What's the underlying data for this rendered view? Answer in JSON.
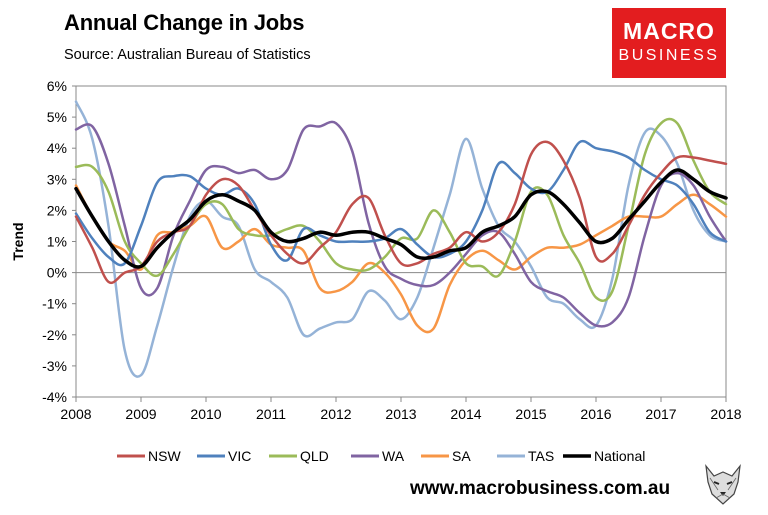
{
  "header": {
    "title": "Annual Change in Jobs",
    "subtitle": "Source: Australian Bureau of Statistics"
  },
  "logo": {
    "line1": "MACRO",
    "line2": "BUSINESS",
    "color": "#e31d1f"
  },
  "footer": {
    "url": "www.macrobusiness.com.au"
  },
  "chart_data": {
    "type": "line",
    "title": "Annual Change in Jobs",
    "xlabel": "",
    "ylabel": "Trend",
    "xlim": [
      2008,
      2018
    ],
    "ylim": [
      -4,
      6
    ],
    "xticks": [
      "2008",
      "2009",
      "2010",
      "2011",
      "2012",
      "2013",
      "2014",
      "2015",
      "2016",
      "2017",
      "2018"
    ],
    "yticks": [
      "-4%",
      "-3%",
      "-2%",
      "-1%",
      "0%",
      "1%",
      "2%",
      "3%",
      "4%",
      "5%",
      "6%"
    ],
    "grid": false,
    "legend_position": "bottom",
    "series": [
      {
        "name": "NSW",
        "color": "#c0504d",
        "width": 2.5,
        "points": [
          [
            2008,
            1.8
          ],
          [
            2008.25,
            0.8
          ],
          [
            2008.5,
            -0.3
          ],
          [
            2008.75,
            0.0
          ],
          [
            2009,
            0.2
          ],
          [
            2009.25,
            1.0
          ],
          [
            2009.5,
            1.3
          ],
          [
            2009.75,
            1.5
          ],
          [
            2010,
            2.5
          ],
          [
            2010.25,
            3.0
          ],
          [
            2010.5,
            2.8
          ],
          [
            2010.75,
            2.0
          ],
          [
            2011,
            1.2
          ],
          [
            2011.25,
            0.6
          ],
          [
            2011.5,
            0.3
          ],
          [
            2011.75,
            0.8
          ],
          [
            2012,
            1.3
          ],
          [
            2012.25,
            2.2
          ],
          [
            2012.5,
            2.4
          ],
          [
            2012.75,
            1.2
          ],
          [
            2013,
            0.3
          ],
          [
            2013.25,
            0.3
          ],
          [
            2013.5,
            0.6
          ],
          [
            2013.75,
            0.8
          ],
          [
            2014,
            1.3
          ],
          [
            2014.25,
            1.0
          ],
          [
            2014.5,
            1.3
          ],
          [
            2014.75,
            2.2
          ],
          [
            2015,
            3.8
          ],
          [
            2015.25,
            4.2
          ],
          [
            2015.5,
            3.6
          ],
          [
            2015.75,
            2.4
          ],
          [
            2016,
            0.5
          ],
          [
            2016.25,
            0.6
          ],
          [
            2016.5,
            1.5
          ],
          [
            2016.75,
            2.5
          ],
          [
            2017,
            3.2
          ],
          [
            2017.25,
            3.7
          ],
          [
            2017.5,
            3.7
          ],
          [
            2017.75,
            3.6
          ],
          [
            2018,
            3.5
          ]
        ]
      },
      {
        "name": "VIC",
        "color": "#4f81bd",
        "width": 2.5,
        "points": [
          [
            2008,
            1.9
          ],
          [
            2008.25,
            1.1
          ],
          [
            2008.5,
            0.5
          ],
          [
            2008.75,
            0.3
          ],
          [
            2009,
            1.5
          ],
          [
            2009.25,
            2.9
          ],
          [
            2009.5,
            3.1
          ],
          [
            2009.75,
            3.1
          ],
          [
            2010,
            2.7
          ],
          [
            2010.25,
            2.5
          ],
          [
            2010.5,
            2.7
          ],
          [
            2010.75,
            2.2
          ],
          [
            2011,
            0.9
          ],
          [
            2011.25,
            0.4
          ],
          [
            2011.5,
            1.4
          ],
          [
            2011.75,
            1.2
          ],
          [
            2012,
            1.0
          ],
          [
            2012.25,
            1.0
          ],
          [
            2012.5,
            1.0
          ],
          [
            2012.75,
            1.1
          ],
          [
            2013,
            1.4
          ],
          [
            2013.25,
            0.9
          ],
          [
            2013.5,
            0.5
          ],
          [
            2013.75,
            0.6
          ],
          [
            2014,
            1.0
          ],
          [
            2014.25,
            2.0
          ],
          [
            2014.5,
            3.5
          ],
          [
            2014.75,
            3.2
          ],
          [
            2015,
            2.7
          ],
          [
            2015.25,
            2.6
          ],
          [
            2015.5,
            3.3
          ],
          [
            2015.75,
            4.2
          ],
          [
            2016,
            4.0
          ],
          [
            2016.25,
            3.9
          ],
          [
            2016.5,
            3.7
          ],
          [
            2016.75,
            3.3
          ],
          [
            2017,
            3.0
          ],
          [
            2017.25,
            2.8
          ],
          [
            2017.5,
            2.2
          ],
          [
            2017.75,
            1.3
          ],
          [
            2018,
            1.0
          ]
        ]
      },
      {
        "name": "QLD",
        "color": "#9bbb59",
        "width": 2.5,
        "points": [
          [
            2008,
            3.4
          ],
          [
            2008.25,
            3.4
          ],
          [
            2008.5,
            2.6
          ],
          [
            2008.75,
            1.0
          ],
          [
            2009,
            0.3
          ],
          [
            2009.25,
            -0.1
          ],
          [
            2009.5,
            0.6
          ],
          [
            2009.75,
            1.5
          ],
          [
            2010,
            2.2
          ],
          [
            2010.25,
            2.2
          ],
          [
            2010.5,
            1.4
          ],
          [
            2010.75,
            1.2
          ],
          [
            2011,
            1.2
          ],
          [
            2011.25,
            1.4
          ],
          [
            2011.5,
            1.5
          ],
          [
            2011.75,
            1.0
          ],
          [
            2012,
            0.3
          ],
          [
            2012.25,
            0.1
          ],
          [
            2012.5,
            0.1
          ],
          [
            2012.75,
            0.5
          ],
          [
            2013,
            1.1
          ],
          [
            2013.25,
            1.1
          ],
          [
            2013.5,
            2.0
          ],
          [
            2013.75,
            1.3
          ],
          [
            2014,
            0.3
          ],
          [
            2014.25,
            0.2
          ],
          [
            2014.5,
            -0.1
          ],
          [
            2014.75,
            1.0
          ],
          [
            2015,
            2.6
          ],
          [
            2015.25,
            2.5
          ],
          [
            2015.5,
            1.2
          ],
          [
            2015.75,
            0.3
          ],
          [
            2016,
            -0.8
          ],
          [
            2016.25,
            -0.6
          ],
          [
            2016.5,
            1.5
          ],
          [
            2016.75,
            3.8
          ],
          [
            2017,
            4.8
          ],
          [
            2017.25,
            4.8
          ],
          [
            2017.5,
            3.6
          ],
          [
            2017.75,
            2.6
          ],
          [
            2018,
            2.2
          ]
        ]
      },
      {
        "name": "WA",
        "color": "#8064a2",
        "width": 2.5,
        "points": [
          [
            2008,
            4.6
          ],
          [
            2008.25,
            4.7
          ],
          [
            2008.5,
            3.5
          ],
          [
            2008.75,
            1.5
          ],
          [
            2009,
            -0.5
          ],
          [
            2009.25,
            -0.5
          ],
          [
            2009.5,
            1.2
          ],
          [
            2009.75,
            2.3
          ],
          [
            2010,
            3.3
          ],
          [
            2010.25,
            3.4
          ],
          [
            2010.5,
            3.2
          ],
          [
            2010.75,
            3.3
          ],
          [
            2011,
            3.0
          ],
          [
            2011.25,
            3.3
          ],
          [
            2011.5,
            4.6
          ],
          [
            2011.75,
            4.7
          ],
          [
            2012,
            4.8
          ],
          [
            2012.25,
            3.9
          ],
          [
            2012.5,
            1.6
          ],
          [
            2012.75,
            0.2
          ],
          [
            2013,
            -0.2
          ],
          [
            2013.25,
            -0.4
          ],
          [
            2013.5,
            -0.4
          ],
          [
            2013.75,
            0.0
          ],
          [
            2014,
            0.6
          ],
          [
            2014.25,
            1.2
          ],
          [
            2014.5,
            1.3
          ],
          [
            2014.75,
            0.6
          ],
          [
            2015,
            -0.3
          ],
          [
            2015.25,
            -0.6
          ],
          [
            2015.5,
            -0.8
          ],
          [
            2015.75,
            -1.3
          ],
          [
            2016,
            -1.7
          ],
          [
            2016.25,
            -1.6
          ],
          [
            2016.5,
            -0.8
          ],
          [
            2016.75,
            1.2
          ],
          [
            2017,
            2.8
          ],
          [
            2017.25,
            3.2
          ],
          [
            2017.5,
            2.8
          ],
          [
            2017.75,
            1.8
          ],
          [
            2018,
            1.0
          ]
        ]
      },
      {
        "name": "SA",
        "color": "#f79646",
        "width": 2.5,
        "points": [
          [
            2008,
            2.8
          ],
          [
            2008.25,
            1.8
          ],
          [
            2008.5,
            1.0
          ],
          [
            2008.75,
            0.7
          ],
          [
            2009,
            0.1
          ],
          [
            2009.25,
            1.2
          ],
          [
            2009.5,
            1.3
          ],
          [
            2009.75,
            1.5
          ],
          [
            2010,
            1.8
          ],
          [
            2010.25,
            0.8
          ],
          [
            2010.5,
            1.0
          ],
          [
            2010.75,
            1.4
          ],
          [
            2011,
            0.9
          ],
          [
            2011.25,
            0.8
          ],
          [
            2011.5,
            0.7
          ],
          [
            2011.75,
            -0.5
          ],
          [
            2012,
            -0.6
          ],
          [
            2012.25,
            -0.3
          ],
          [
            2012.5,
            0.3
          ],
          [
            2012.75,
            0.0
          ],
          [
            2013,
            -0.7
          ],
          [
            2013.25,
            -1.7
          ],
          [
            2013.5,
            -1.8
          ],
          [
            2013.75,
            -0.4
          ],
          [
            2014,
            0.4
          ],
          [
            2014.25,
            0.7
          ],
          [
            2014.5,
            0.4
          ],
          [
            2014.75,
            0.1
          ],
          [
            2015,
            0.5
          ],
          [
            2015.25,
            0.8
          ],
          [
            2015.5,
            0.8
          ],
          [
            2015.75,
            0.9
          ],
          [
            2016,
            1.2
          ],
          [
            2016.25,
            1.5
          ],
          [
            2016.5,
            1.8
          ],
          [
            2016.75,
            1.8
          ],
          [
            2017,
            1.8
          ],
          [
            2017.25,
            2.2
          ],
          [
            2017.5,
            2.5
          ],
          [
            2017.75,
            2.2
          ],
          [
            2018,
            1.8
          ]
        ]
      },
      {
        "name": "TAS",
        "color": "#95b3d7",
        "width": 2.5,
        "points": [
          [
            2008,
            5.5
          ],
          [
            2008.25,
            4.3
          ],
          [
            2008.5,
            1.5
          ],
          [
            2008.75,
            -2.5
          ],
          [
            2009,
            -3.3
          ],
          [
            2009.25,
            -1.7
          ],
          [
            2009.5,
            0.2
          ],
          [
            2009.75,
            1.8
          ],
          [
            2010,
            2.3
          ],
          [
            2010.25,
            1.8
          ],
          [
            2010.5,
            1.5
          ],
          [
            2010.75,
            0.1
          ],
          [
            2011,
            -0.3
          ],
          [
            2011.25,
            -0.8
          ],
          [
            2011.5,
            -2.0
          ],
          [
            2011.75,
            -1.8
          ],
          [
            2012,
            -1.6
          ],
          [
            2012.25,
            -1.5
          ],
          [
            2012.5,
            -0.6
          ],
          [
            2012.75,
            -0.9
          ],
          [
            2013,
            -1.5
          ],
          [
            2013.25,
            -0.8
          ],
          [
            2013.5,
            0.8
          ],
          [
            2013.75,
            2.5
          ],
          [
            2014,
            4.3
          ],
          [
            2014.25,
            2.7
          ],
          [
            2014.5,
            1.5
          ],
          [
            2014.75,
            1.0
          ],
          [
            2015,
            0.2
          ],
          [
            2015.25,
            -0.8
          ],
          [
            2015.5,
            -1.0
          ],
          [
            2015.75,
            -1.5
          ],
          [
            2016,
            -1.7
          ],
          [
            2016.25,
            -0.2
          ],
          [
            2016.5,
            2.8
          ],
          [
            2016.75,
            4.5
          ],
          [
            2017,
            4.4
          ],
          [
            2017.25,
            3.5
          ],
          [
            2017.5,
            2.0
          ],
          [
            2017.75,
            1.2
          ],
          [
            2018,
            1.0
          ]
        ]
      },
      {
        "name": "National",
        "color": "#000000",
        "width": 3.5,
        "points": [
          [
            2008,
            2.7
          ],
          [
            2008.25,
            1.8
          ],
          [
            2008.5,
            1.0
          ],
          [
            2008.75,
            0.4
          ],
          [
            2009,
            0.2
          ],
          [
            2009.25,
            0.8
          ],
          [
            2009.5,
            1.3
          ],
          [
            2009.75,
            1.7
          ],
          [
            2010,
            2.3
          ],
          [
            2010.25,
            2.5
          ],
          [
            2010.5,
            2.3
          ],
          [
            2010.75,
            2.0
          ],
          [
            2011,
            1.3
          ],
          [
            2011.25,
            1.0
          ],
          [
            2011.5,
            1.1
          ],
          [
            2011.75,
            1.3
          ],
          [
            2012,
            1.2
          ],
          [
            2012.25,
            1.3
          ],
          [
            2012.5,
            1.3
          ],
          [
            2012.75,
            1.1
          ],
          [
            2013,
            0.9
          ],
          [
            2013.25,
            0.5
          ],
          [
            2013.5,
            0.5
          ],
          [
            2013.75,
            0.7
          ],
          [
            2014,
            0.8
          ],
          [
            2014.25,
            1.3
          ],
          [
            2014.5,
            1.5
          ],
          [
            2014.75,
            1.8
          ],
          [
            2015,
            2.5
          ],
          [
            2015.25,
            2.6
          ],
          [
            2015.5,
            2.2
          ],
          [
            2015.75,
            1.6
          ],
          [
            2016,
            1.0
          ],
          [
            2016.25,
            1.1
          ],
          [
            2016.5,
            1.7
          ],
          [
            2016.75,
            2.3
          ],
          [
            2017,
            2.9
          ],
          [
            2017.25,
            3.3
          ],
          [
            2017.5,
            3.0
          ],
          [
            2017.75,
            2.6
          ],
          [
            2018,
            2.4
          ]
        ]
      }
    ]
  }
}
